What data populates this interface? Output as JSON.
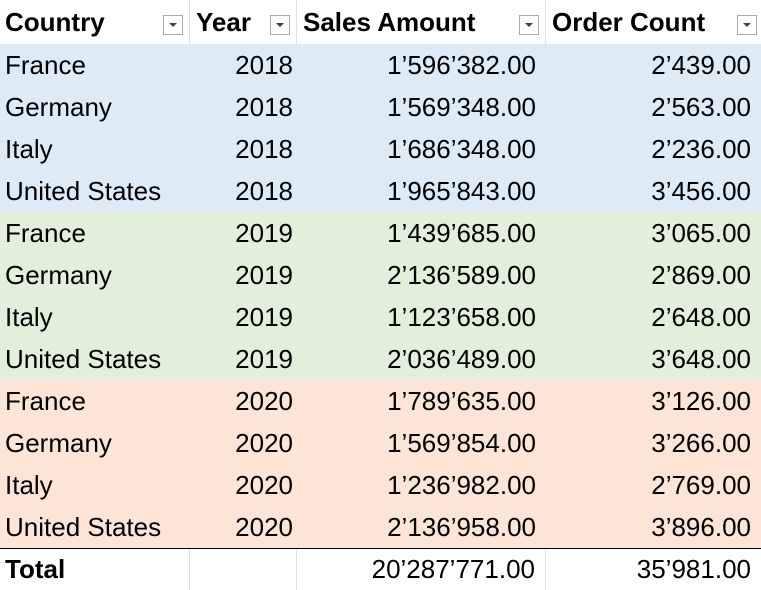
{
  "columns": {
    "country": "Country",
    "year": "Year",
    "sales": "Sales Amount",
    "orders": "Order Count"
  },
  "colors": {
    "band_2018": "#ddebf7",
    "band_2019": "#e2efda",
    "band_2020": "#fce4d6"
  },
  "rows": [
    {
      "country": "France",
      "year": "2018",
      "sales": "1’596’382.00",
      "orders": "2’439.00",
      "band": "band_2018"
    },
    {
      "country": "Germany",
      "year": "2018",
      "sales": "1’569’348.00",
      "orders": "2’563.00",
      "band": "band_2018"
    },
    {
      "country": "Italy",
      "year": "2018",
      "sales": "1’686’348.00",
      "orders": "2’236.00",
      "band": "band_2018"
    },
    {
      "country": "United States",
      "year": "2018",
      "sales": "1’965’843.00",
      "orders": "3’456.00",
      "band": "band_2018"
    },
    {
      "country": "France",
      "year": "2019",
      "sales": "1’439’685.00",
      "orders": "3’065.00",
      "band": "band_2019"
    },
    {
      "country": "Germany",
      "year": "2019",
      "sales": "2’136’589.00",
      "orders": "2’869.00",
      "band": "band_2019"
    },
    {
      "country": "Italy",
      "year": "2019",
      "sales": "1’123’658.00",
      "orders": "2’648.00",
      "band": "band_2019"
    },
    {
      "country": "United States",
      "year": "2019",
      "sales": "2’036’489.00",
      "orders": "3’648.00",
      "band": "band_2019"
    },
    {
      "country": "France",
      "year": "2020",
      "sales": "1’789’635.00",
      "orders": "3’126.00",
      "band": "band_2020"
    },
    {
      "country": "Germany",
      "year": "2020",
      "sales": "1’569’854.00",
      "orders": "3’266.00",
      "band": "band_2020"
    },
    {
      "country": "Italy",
      "year": "2020",
      "sales": "1’236’982.00",
      "orders": "2’769.00",
      "band": "band_2020"
    },
    {
      "country": "United States",
      "year": "2020",
      "sales": "2’136’958.00",
      "orders": "3’896.00",
      "band": "band_2020"
    }
  ],
  "total": {
    "label": "Total",
    "year": "",
    "sales": "20’287’771.00",
    "orders": "35’981.00"
  }
}
